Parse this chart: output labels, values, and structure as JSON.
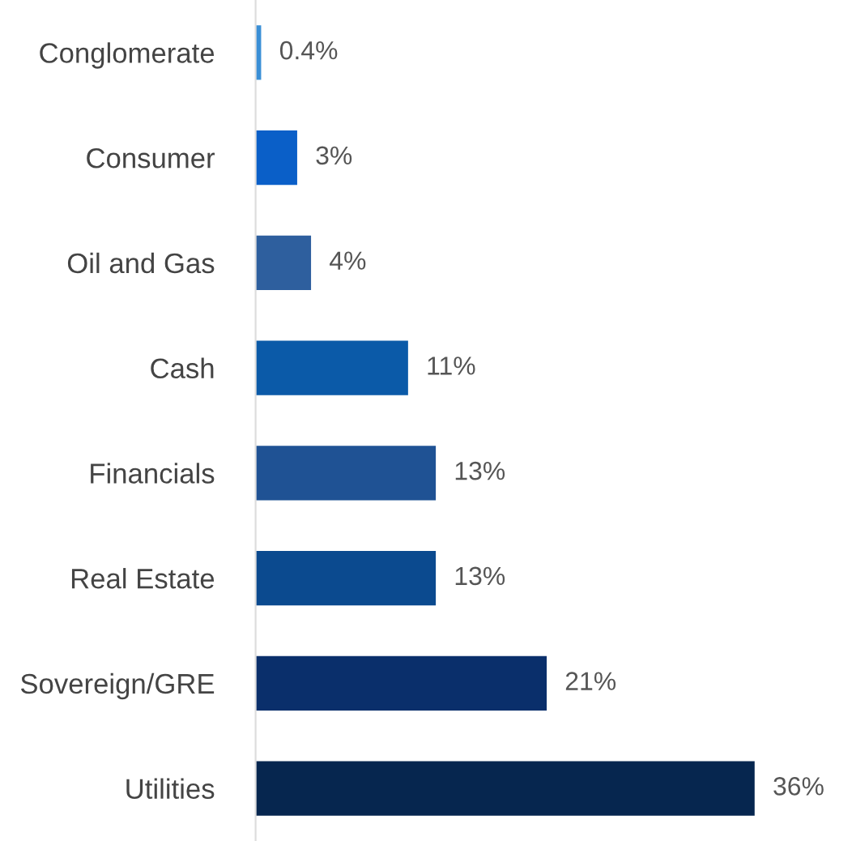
{
  "chart_data": {
    "type": "bar",
    "orientation": "horizontal",
    "categories": [
      "Conglomerate",
      "Consumer",
      "Oil and Gas",
      "Cash",
      "Financials",
      "Real Estate",
      "Sovereign/GRE",
      "Utilities"
    ],
    "values": [
      0.4,
      3,
      4,
      11,
      13,
      13,
      21,
      36
    ],
    "value_labels": [
      "0.4%",
      "3%",
      "4%",
      "11%",
      "13%",
      "13%",
      "21%",
      "36%"
    ],
    "colors": [
      "#3a8fd6",
      "#0a5fc8",
      "#2e5f9e",
      "#0b5aa8",
      "#1f5294",
      "#0b4a8f",
      "#0a2f6b",
      "#06264f"
    ],
    "grid": false,
    "legend": false
  }
}
